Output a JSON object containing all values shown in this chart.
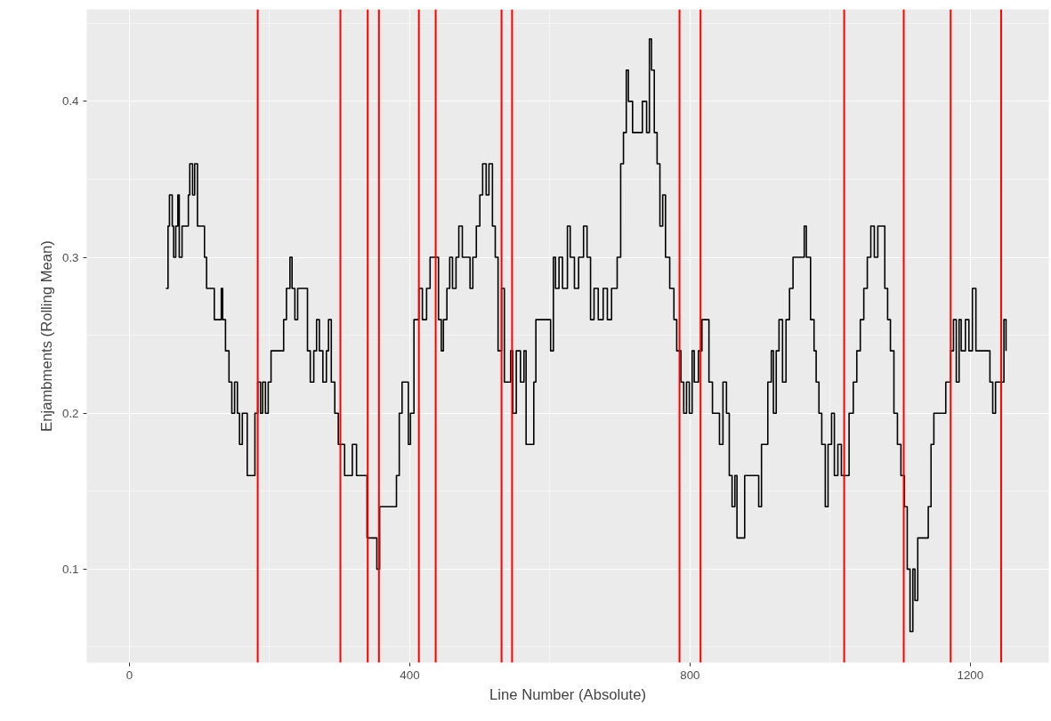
{
  "chart_data": {
    "type": "step",
    "xlabel": "Line Number (Absolute)",
    "ylabel": "Enjambments (Rolling Mean)",
    "xlim": [
      -61,
      1312
    ],
    "ylim": [
      0.04,
      0.459
    ],
    "xticks": [
      0,
      400,
      800,
      1200
    ],
    "yticks": [
      0.1,
      0.2,
      0.3,
      0.4
    ],
    "grid": true,
    "series": [
      {
        "color": "#000000",
        "x": [
          52,
          55,
          57,
          61,
          63,
          66,
          69,
          71,
          75,
          80,
          84,
          86,
          90,
          93,
          97,
          103,
          107,
          110,
          116,
          121,
          127,
          131,
          133,
          137,
          142,
          146,
          150,
          154,
          157,
          161,
          165,
          168,
          175,
          179,
          183,
          187,
          190,
          194,
          198,
          202,
          216,
          220,
          224,
          229,
          232,
          236,
          240,
          250,
          254,
          258,
          263,
          267,
          271,
          276,
          281,
          284,
          288,
          293,
          298,
          305,
          307,
          315,
          318,
          324,
          330,
          334,
          339,
          349,
          353,
          357,
          375,
          381,
          385,
          389,
          394,
          398,
          401,
          406,
          413,
          418,
          424,
          429,
          437,
          441,
          445,
          448,
          453,
          457,
          461,
          466,
          470,
          475,
          481,
          486,
          490,
          495,
          500,
          504,
          509,
          513,
          518,
          522,
          526,
          531,
          535,
          540,
          544,
          547,
          552,
          558,
          563,
          566,
          573,
          577,
          580,
          593,
          601,
          605,
          608,
          613,
          618,
          625,
          629,
          635,
          641,
          648,
          653,
          658,
          663,
          669,
          676,
          682,
          688,
          696,
          701,
          705,
          709,
          712,
          718,
          728,
          732,
          738,
          742,
          745,
          749,
          753,
          757,
          761,
          765,
          771,
          777,
          781,
          787,
          791,
          795,
          799,
          803,
          806,
          812,
          817,
          822,
          827,
          832,
          838,
          842,
          847,
          852,
          856,
          860,
          864,
          867,
          874,
          878,
          894,
          898,
          902,
          908,
          911,
          916,
          919,
          923,
          927,
          932,
          937,
          942,
          947,
          959,
          963,
          966,
          972,
          977,
          980,
          984,
          988,
          993,
          997,
          1002,
          1006,
          1011,
          1016,
          1022,
          1027,
          1033,
          1038,
          1043,
          1048,
          1053,
          1058,
          1063,
          1068,
          1073,
          1078,
          1082,
          1086,
          1091,
          1096,
          1101,
          1106,
          1110,
          1114,
          1118,
          1121,
          1125,
          1137,
          1140,
          1144,
          1148,
          1160,
          1165,
          1172,
          1176,
          1180,
          1184,
          1187,
          1193,
          1198,
          1203,
          1208,
          1222,
          1228,
          1232,
          1236,
          1245,
          1248,
          1251
        ],
        "values": [
          0.28,
          0.32,
          0.34,
          0.32,
          0.3,
          0.32,
          0.34,
          0.3,
          0.32,
          0.32,
          0.34,
          0.36,
          0.34,
          0.36,
          0.32,
          0.32,
          0.3,
          0.28,
          0.28,
          0.26,
          0.26,
          0.28,
          0.26,
          0.24,
          0.22,
          0.2,
          0.22,
          0.2,
          0.18,
          0.2,
          0.2,
          0.16,
          0.16,
          0.2,
          0.22,
          0.2,
          0.22,
          0.2,
          0.22,
          0.24,
          0.24,
          0.26,
          0.28,
          0.3,
          0.28,
          0.26,
          0.28,
          0.28,
          0.24,
          0.22,
          0.24,
          0.26,
          0.24,
          0.22,
          0.24,
          0.26,
          0.22,
          0.2,
          0.18,
          0.18,
          0.16,
          0.16,
          0.18,
          0.16,
          0.16,
          0.16,
          0.12,
          0.12,
          0.1,
          0.14,
          0.14,
          0.16,
          0.2,
          0.22,
          0.22,
          0.18,
          0.2,
          0.26,
          0.28,
          0.26,
          0.28,
          0.3,
          0.3,
          0.26,
          0.24,
          0.26,
          0.28,
          0.3,
          0.28,
          0.3,
          0.32,
          0.3,
          0.3,
          0.28,
          0.3,
          0.32,
          0.34,
          0.36,
          0.34,
          0.36,
          0.32,
          0.3,
          0.24,
          0.28,
          0.22,
          0.22,
          0.24,
          0.2,
          0.24,
          0.22,
          0.24,
          0.18,
          0.18,
          0.22,
          0.26,
          0.26,
          0.24,
          0.3,
          0.28,
          0.3,
          0.28,
          0.32,
          0.3,
          0.28,
          0.3,
          0.32,
          0.3,
          0.26,
          0.28,
          0.26,
          0.28,
          0.26,
          0.28,
          0.3,
          0.36,
          0.38,
          0.42,
          0.4,
          0.38,
          0.38,
          0.4,
          0.38,
          0.44,
          0.42,
          0.38,
          0.36,
          0.32,
          0.34,
          0.3,
          0.28,
          0.26,
          0.24,
          0.22,
          0.2,
          0.22,
          0.2,
          0.24,
          0.22,
          0.24,
          0.26,
          0.26,
          0.22,
          0.2,
          0.2,
          0.18,
          0.22,
          0.2,
          0.16,
          0.14,
          0.16,
          0.12,
          0.12,
          0.16,
          0.16,
          0.14,
          0.18,
          0.18,
          0.22,
          0.24,
          0.2,
          0.24,
          0.26,
          0.22,
          0.26,
          0.28,
          0.3,
          0.3,
          0.32,
          0.3,
          0.26,
          0.24,
          0.22,
          0.2,
          0.18,
          0.14,
          0.18,
          0.2,
          0.16,
          0.18,
          0.16,
          0.16,
          0.2,
          0.22,
          0.24,
          0.26,
          0.28,
          0.3,
          0.32,
          0.3,
          0.32,
          0.32,
          0.28,
          0.26,
          0.24,
          0.2,
          0.18,
          0.16,
          0.14,
          0.1,
          0.06,
          0.1,
          0.08,
          0.12,
          0.12,
          0.14,
          0.18,
          0.2,
          0.2,
          0.22,
          0.24,
          0.26,
          0.22,
          0.26,
          0.24,
          0.26,
          0.24,
          0.28,
          0.24,
          0.24,
          0.22,
          0.2,
          0.22,
          0.22,
          0.26,
          0.24
        ]
      }
    ],
    "ref_lines": [
      {
        "axis": "x",
        "value": 183,
        "color": "#ff0000"
      },
      {
        "axis": "x",
        "value": 301,
        "color": "#ff0000"
      },
      {
        "axis": "x",
        "value": 340,
        "color": "#ff0000"
      },
      {
        "axis": "x",
        "value": 356,
        "color": "#ff0000"
      },
      {
        "axis": "x",
        "value": 413,
        "color": "#ff0000"
      },
      {
        "axis": "x",
        "value": 437,
        "color": "#ff0000"
      },
      {
        "axis": "x",
        "value": 531,
        "color": "#ff0000"
      },
      {
        "axis": "x",
        "value": 546,
        "color": "#ff0000"
      },
      {
        "axis": "x",
        "value": 785,
        "color": "#ff0000"
      },
      {
        "axis": "x",
        "value": 815,
        "color": "#ff0000"
      },
      {
        "axis": "x",
        "value": 1020,
        "color": "#ff0000"
      },
      {
        "axis": "x",
        "value": 1105,
        "color": "#ff0000"
      },
      {
        "axis": "x",
        "value": 1172,
        "color": "#ff0000"
      },
      {
        "axis": "x",
        "value": 1244,
        "color": "#ff0000"
      }
    ]
  }
}
